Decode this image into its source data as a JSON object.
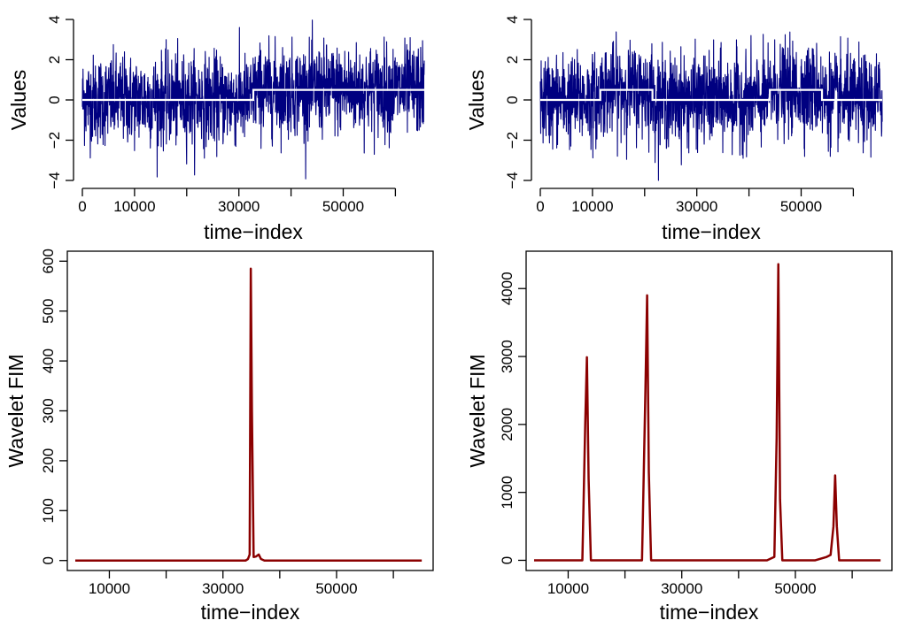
{
  "chart_data": [
    {
      "type": "line",
      "xlabel": "time−index",
      "ylabel": "Values",
      "xlim": [
        0,
        65536
      ],
      "ylim": [
        -4,
        4
      ],
      "xticks": [
        0,
        10000,
        20000,
        30000,
        40000,
        50000,
        60000
      ],
      "xtick_labels": [
        "0",
        "10000",
        "",
        "30000",
        "",
        "50000",
        ""
      ],
      "yticks": [
        -4,
        -2,
        0,
        2,
        4
      ],
      "ytick_labels": [
        "−4",
        "−2",
        "0",
        "2",
        "4"
      ],
      "noise_color": "#000080",
      "mean_color": "#ffffff",
      "series": [
        {
          "x": [
            0,
            32768,
            32768,
            65536
          ],
          "y": [
            0,
            0,
            0.5,
            0.5
          ]
        }
      ]
    },
    {
      "type": "line",
      "xlabel": "time−index",
      "ylabel": "Values",
      "xlim": [
        0,
        65536
      ],
      "ylim": [
        -4,
        4
      ],
      "xticks": [
        0,
        10000,
        20000,
        30000,
        40000,
        50000,
        60000
      ],
      "xtick_labels": [
        "0",
        "10000",
        "",
        "30000",
        "",
        "50000",
        ""
      ],
      "yticks": [
        -4,
        -2,
        0,
        2,
        4
      ],
      "ytick_labels": [
        "−4",
        "−2",
        "0",
        "2",
        "4"
      ],
      "noise_color": "#000080",
      "mean_color": "#ffffff",
      "series": [
        {
          "x": [
            0,
            11500,
            11500,
            21500,
            21500,
            44000,
            44000,
            54000,
            54000,
            65536
          ],
          "y": [
            0,
            0,
            0.5,
            0.5,
            0,
            0,
            0.5,
            0.5,
            0,
            0
          ]
        }
      ]
    },
    {
      "type": "line",
      "xlabel": "time−index",
      "ylabel": "Wavelet FIM",
      "xlim": [
        2600,
        67000
      ],
      "ylim": [
        -20,
        620
      ],
      "xticks": [
        10000,
        20000,
        30000,
        40000,
        50000,
        60000
      ],
      "xtick_labels": [
        "10000",
        "",
        "30000",
        "",
        "50000",
        ""
      ],
      "yticks": [
        0,
        100,
        200,
        300,
        400,
        500,
        600
      ],
      "ytick_labels": [
        "0",
        "100",
        "200",
        "300",
        "400",
        "500",
        "600"
      ],
      "line_color": "#8b0000",
      "series": [
        {
          "x": [
            4000,
            34000,
            34400,
            34700,
            34900,
            35100,
            35400,
            35800,
            36300,
            36700,
            37300,
            65000
          ],
          "y": [
            0,
            0,
            3,
            12,
            585,
            300,
            7,
            8,
            12,
            3,
            0,
            0
          ]
        }
      ]
    },
    {
      "type": "line",
      "xlabel": "time−index",
      "ylabel": "Wavelet FIM",
      "xlim": [
        2600,
        67000
      ],
      "ylim": [
        -150,
        4550
      ],
      "xticks": [
        10000,
        20000,
        30000,
        40000,
        50000,
        60000
      ],
      "xtick_labels": [
        "10000",
        "",
        "30000",
        "",
        "50000",
        ""
      ],
      "yticks": [
        0,
        1000,
        2000,
        3000,
        4000
      ],
      "ytick_labels": [
        "0",
        "1000",
        "2000",
        "3000",
        "4000"
      ],
      "line_color": "#8b0000",
      "series": [
        {
          "x": [
            4000,
            12500,
            13000,
            13300,
            13600,
            14000,
            23000,
            23600,
            23900,
            24200,
            24600,
            45000,
            46300,
            46700,
            47000,
            47300,
            47700,
            53500,
            55500,
            56200,
            56700,
            57000,
            57300,
            57700,
            65000
          ],
          "y": [
            0,
            0,
            2000,
            2990,
            1200,
            0,
            0,
            2500,
            3900,
            1300,
            0,
            0,
            50,
            1800,
            4360,
            900,
            0,
            0,
            50,
            80,
            500,
            1250,
            500,
            0,
            0
          ]
        }
      ]
    }
  ]
}
